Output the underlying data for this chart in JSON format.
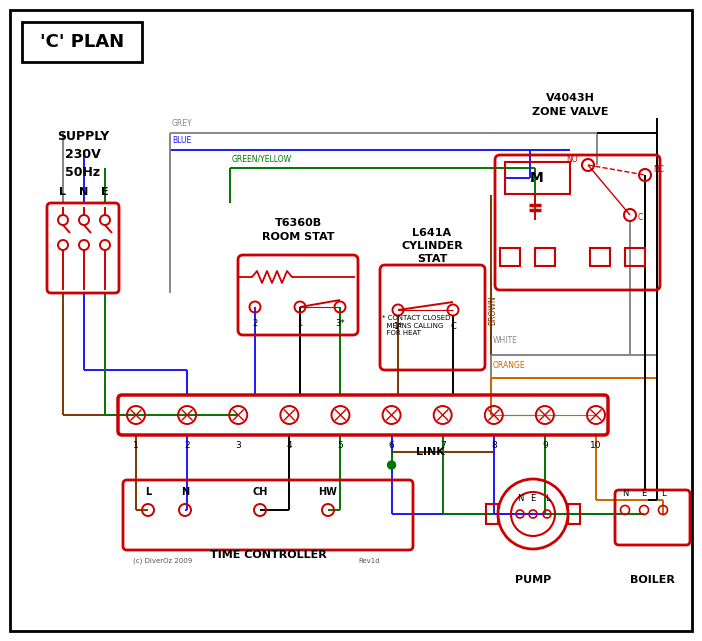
{
  "bg": "#ffffff",
  "red": "#cc0000",
  "blue": "#1a1aff",
  "green": "#007700",
  "grey": "#888888",
  "brown": "#7a3800",
  "orange": "#cc6600",
  "black": "#000000",
  "darkred": "#aa0000",
  "title": "'C' PLAN",
  "zone_valve": "V4043H\nZONE VALVE",
  "room_stat": "T6360B\nROOM STAT",
  "cyl_stat": "L641A\nCYLINDER\nSTAT",
  "time_ctrl": "TIME CONTROLLER",
  "pump_lbl": "PUMP",
  "boiler_lbl": "BOILER",
  "link_lbl": "LINK",
  "supply_lbl": "SUPPLY\n230V\n50Hz",
  "copyright": "(c) DiverOz 2009",
  "rev": "Rev1d"
}
